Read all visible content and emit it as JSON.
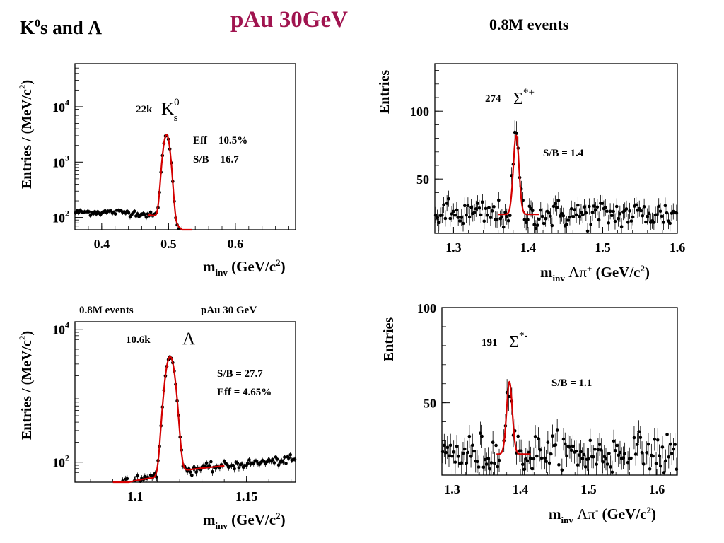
{
  "header": {
    "left_main": "K",
    "left_sup": "0",
    "left_rest": "s and",
    "left_symbol": "Λ",
    "center": "pAu  30GeV",
    "right": "0.8M events",
    "center_color": "#a0144f"
  },
  "colors": {
    "fit": "#d40000",
    "marker": "#000000"
  },
  "chart_data": [
    {
      "type": "scatter",
      "panel": "K0s",
      "ylabel": "Entries / (MeV/c2)",
      "xlabel": "minv (GeV/c2)",
      "xlim": [
        0.36,
        0.69
      ],
      "ylim": [
        60,
        60000
      ],
      "yscale": "log",
      "xticks": [
        {
          "v": 0.4,
          "label": "0.4"
        },
        {
          "v": 0.5,
          "label": "0.5"
        },
        {
          "v": 0.6,
          "label": "0.6"
        }
      ],
      "yticks": [
        {
          "v": 100,
          "base": "10",
          "exp": "2"
        },
        {
          "v": 1000,
          "base": "10",
          "exp": "3"
        },
        {
          "v": 10000,
          "base": "10",
          "exp": "4"
        }
      ],
      "peak": {
        "mean": 0.497,
        "sigma": 0.0045,
        "amp": 3000
      },
      "background": "k0s",
      "fit_range": [
        0.47,
        0.535
      ],
      "annotations": {
        "count": "22k",
        "particle": "K",
        "particle_sup": "0",
        "particle_sub": "s",
        "eff": "Eff = 10.5%",
        "sb": "S/B = 16.7"
      }
    },
    {
      "type": "scatter",
      "panel": "Sigma*+",
      "ylabel": "Entries",
      "xlabel": "minv Λπ+ (GeV/c2)",
      "xlim": [
        1.275,
        1.6
      ],
      "ylim": [
        10,
        135
      ],
      "yscale": "linear",
      "xticks": [
        {
          "v": 1.3,
          "label": "1.3"
        },
        {
          "v": 1.4,
          "label": "1.4"
        },
        {
          "v": 1.5,
          "label": "1.5"
        },
        {
          "v": 1.6,
          "label": "1.6"
        }
      ],
      "yticks": [
        {
          "v": 50,
          "label": "50"
        },
        {
          "v": 100,
          "label": "100"
        }
      ],
      "peak": {
        "mean": 1.384,
        "sigma": 0.0038,
        "amp": 58
      },
      "background": "sigma",
      "baseline": 24,
      "fit_range": [
        1.36,
        1.415
      ],
      "annotations": {
        "count": "274",
        "particle": "Σ",
        "particle_sup": "*+",
        "sb": "S/B = 1.4"
      }
    },
    {
      "type": "scatter",
      "panel": "Lambda",
      "ylabel": "Entries / (MeV/c2)",
      "xlabel": "minv (GeV/c2)",
      "xlim": [
        1.073,
        1.172
      ],
      "ylim": [
        50,
        13000
      ],
      "yscale": "log",
      "xticks": [
        {
          "v": 1.1,
          "label": "1.1"
        },
        {
          "v": 1.15,
          "label": "1.15"
        }
      ],
      "yticks": [
        {
          "v": 100,
          "base": "10",
          "exp": "2"
        },
        {
          "v": 10000,
          "base": "10",
          "exp": "4"
        }
      ],
      "peak": {
        "mean": 1.1157,
        "sigma": 0.0018,
        "amp": 3800
      },
      "background": "lambda",
      "fit_range": [
        1.09,
        1.14
      ],
      "annotations": {
        "top_left": "0.8M events",
        "top_right": "pAu 30 GeV",
        "count": "10.6k",
        "particle": "Λ",
        "sb": "S/B = 27.7",
        "eff": "Eff = 4.65%"
      }
    },
    {
      "type": "scatter",
      "panel": "Sigma*-",
      "ylabel": "Entries",
      "xlabel": "minv Λπ- (GeV/c2)",
      "xlim": [
        1.285,
        1.63
      ],
      "ylim": [
        12,
        100
      ],
      "yscale": "linear",
      "xticks": [
        {
          "v": 1.3,
          "label": "1.3"
        },
        {
          "v": 1.4,
          "label": "1.4"
        },
        {
          "v": 1.5,
          "label": "1.5"
        },
        {
          "v": 1.6,
          "label": "1.6"
        }
      ],
      "yticks": [
        {
          "v": 50,
          "label": "50"
        },
        {
          "v": 100,
          "label": "100"
        }
      ],
      "peak": {
        "mean": 1.384,
        "sigma": 0.0042,
        "amp": 38
      },
      "background": "sigma",
      "baseline": 23,
      "fit_range": [
        1.365,
        1.415
      ],
      "annotations": {
        "count": "191",
        "particle": "Σ",
        "particle_sup": "*-",
        "sb": "S/B = 1.1"
      }
    }
  ]
}
